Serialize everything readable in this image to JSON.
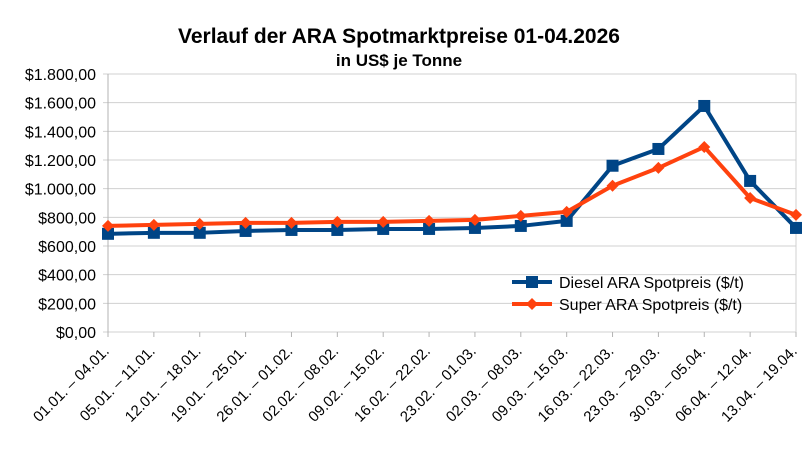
{
  "chart_data": {
    "type": "line",
    "title": "Verlauf der ARA Spotmarktpreise 01-04.2026",
    "subtitle": "in US$ je Tonne",
    "xlabel": "",
    "ylabel": "",
    "ylim": [
      0,
      1800
    ],
    "yticks": [
      0,
      200,
      400,
      600,
      800,
      1000,
      1200,
      1400,
      1600,
      1800
    ],
    "ytick_labels": [
      "$0,00",
      "$200,00",
      "$400,00",
      "$600,00",
      "$800,00",
      "$1.000,00",
      "$1.200,00",
      "$1.400,00",
      "$1.600,00",
      "$1.800,00"
    ],
    "grid": true,
    "legend_position": "bottom-right",
    "categories": [
      "01.01. – 04.01.",
      "05.01. – 11.01.",
      "12.01. – 18.01.",
      "19.01. – 25.01.",
      "26.01. – 01.02.",
      "02.02. – 08.02.",
      "09.02. – 15.02.",
      "16.02. – 22.02.",
      "23.02. – 01.03.",
      "02.03. – 08.03.",
      "09.03. – 15.03.",
      "16.03. – 22.03.",
      "23.03. – 29.03.",
      "30.03. – 05.04.",
      "06.04. – 12.04.",
      "13.04. – 19.04."
    ],
    "series": [
      {
        "name": "Diesel ARA Spotpreis ($/t)",
        "color": "#004586",
        "marker": "square",
        "values": [
          685,
          692,
          692,
          705,
          712,
          712,
          719,
          719,
          726,
          740,
          775,
          1160,
          1277,
          1577,
          1054,
          726
        ]
      },
      {
        "name": "Super ARA Spotpreis ($/t)",
        "color": "#ff420e",
        "marker": "diamond",
        "values": [
          740,
          747,
          754,
          761,
          761,
          768,
          768,
          775,
          782,
          810,
          838,
          1020,
          1145,
          1291,
          935,
          817
        ]
      }
    ]
  }
}
